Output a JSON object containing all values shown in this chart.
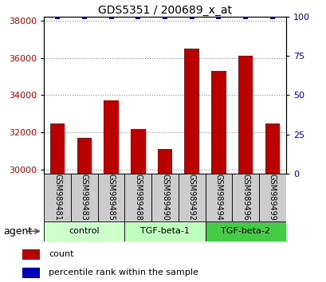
{
  "title": "GDS5351 / 200689_x_at",
  "samples": [
    "GSM989481",
    "GSM989483",
    "GSM989485",
    "GSM989488",
    "GSM989490",
    "GSM989492",
    "GSM989494",
    "GSM989496",
    "GSM989499"
  ],
  "counts": [
    32500,
    31700,
    33700,
    32200,
    31100,
    36500,
    35300,
    36100,
    32500
  ],
  "percentiles": [
    100,
    100,
    100,
    100,
    100,
    100,
    100,
    100,
    100
  ],
  "ylim_left": [
    29800,
    38200
  ],
  "ylim_right": [
    0,
    100
  ],
  "yticks_left": [
    30000,
    32000,
    34000,
    36000,
    38000
  ],
  "yticks_right": [
    0,
    25,
    50,
    75,
    100
  ],
  "groups": [
    {
      "label": "control",
      "indices": [
        0,
        1,
        2
      ],
      "color": "#ccffcc"
    },
    {
      "label": "TGF-beta-1",
      "indices": [
        3,
        4,
        5
      ],
      "color": "#bbffbb"
    },
    {
      "label": "TGF-beta-2",
      "indices": [
        6,
        7,
        8
      ],
      "color": "#44cc44"
    }
  ],
  "bar_color": "#bb0000",
  "dot_color": "#0000bb",
  "bar_width": 0.55,
  "background_color": "#ffffff",
  "sample_box_color": "#cccccc",
  "left_label_color": "#cc0000",
  "right_label_color": "#0000cc",
  "agent_label": "agent",
  "legend_count_label": "count",
  "legend_percentile_label": "percentile rank within the sample",
  "title_fontsize": 10,
  "tick_fontsize": 8,
  "sample_fontsize": 7,
  "group_fontsize": 8,
  "legend_fontsize": 8
}
